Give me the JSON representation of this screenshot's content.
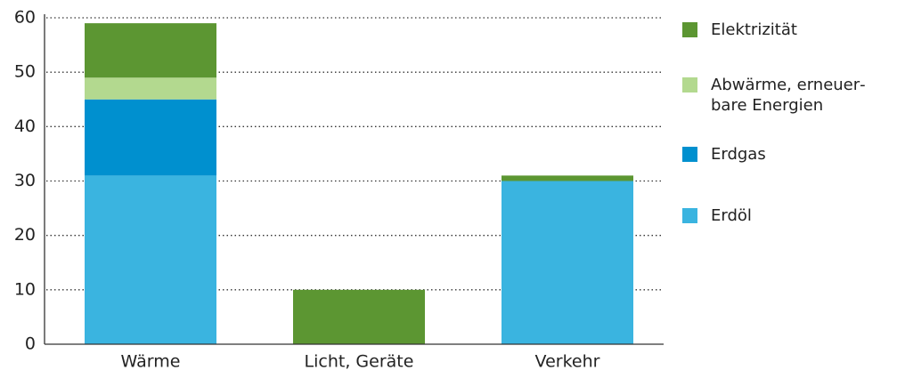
{
  "chart_data": {
    "type": "stacked_bar",
    "categories": [
      "Wärme",
      "Licht, Geräte",
      "Verkehr"
    ],
    "series": [
      {
        "name": "Erdöl",
        "color": "#3ab4e0",
        "values": [
          31,
          0,
          30
        ]
      },
      {
        "name": "Erdgas",
        "color": "#0090cf",
        "values": [
          14,
          0,
          0
        ]
      },
      {
        "name": "Abwärme, erneuer­bare Energien",
        "color": "#b3d98f",
        "values": [
          4,
          0,
          0
        ]
      },
      {
        "name": "Elektrizität",
        "color": "#5c9632",
        "values": [
          10,
          10,
          1
        ]
      }
    ],
    "ylim": [
      0,
      60
    ],
    "yticks": [
      0,
      10,
      20,
      30,
      40,
      50,
      60
    ],
    "grid": true,
    "legend": "right"
  }
}
